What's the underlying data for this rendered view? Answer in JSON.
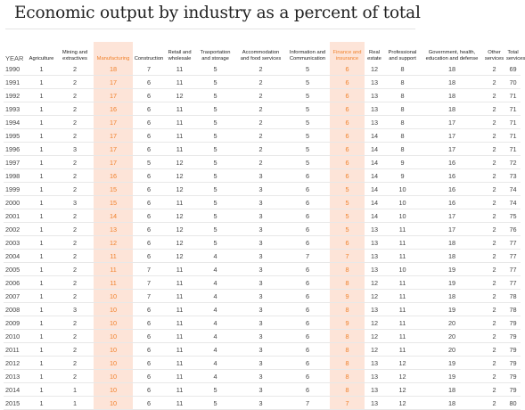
{
  "chart_data": {
    "type": "table",
    "title": "Economic output by industry as a percent of total",
    "columns": [
      "YEAR",
      "Agriculture",
      "Mining and\nextractives",
      "Manufacturing",
      "Construction",
      "Retail and\nwholesale",
      "Trasportation\nand storage",
      "Accommodation\nand food services",
      "Information and\nCommunication",
      "Finance and\ninsurance",
      "Real\nestate",
      "Professional\nand support",
      "Government, health,\neducation and defense",
      "Other\nservices",
      "Total\nservices"
    ],
    "highlighted_columns": [
      "Manufacturing",
      "Finance and\ninsurance"
    ],
    "highlight_color": "#fde4d8",
    "highlight_text_color": "#f0822c",
    "rows": [
      [
        "1990",
        "1",
        "2",
        "18",
        "7",
        "11",
        "5",
        "2",
        "5",
        "6",
        "12",
        "8",
        "18",
        "2",
        "69"
      ],
      [
        "1991",
        "1",
        "2",
        "17",
        "6",
        "11",
        "5",
        "2",
        "5",
        "6",
        "13",
        "8",
        "18",
        "2",
        "70"
      ],
      [
        "1992",
        "1",
        "2",
        "17",
        "6",
        "12",
        "5",
        "2",
        "5",
        "6",
        "13",
        "8",
        "18",
        "2",
        "71"
      ],
      [
        "1993",
        "1",
        "2",
        "16",
        "6",
        "11",
        "5",
        "2",
        "5",
        "6",
        "13",
        "8",
        "18",
        "2",
        "71"
      ],
      [
        "1994",
        "1",
        "2",
        "17",
        "6",
        "11",
        "5",
        "2",
        "5",
        "6",
        "13",
        "8",
        "17",
        "2",
        "71"
      ],
      [
        "1995",
        "1",
        "2",
        "17",
        "6",
        "11",
        "5",
        "2",
        "5",
        "6",
        "14",
        "8",
        "17",
        "2",
        "71"
      ],
      [
        "1996",
        "1",
        "3",
        "17",
        "6",
        "11",
        "5",
        "2",
        "5",
        "6",
        "14",
        "8",
        "17",
        "2",
        "71"
      ],
      [
        "1997",
        "1",
        "2",
        "17",
        "5",
        "12",
        "5",
        "2",
        "5",
        "6",
        "14",
        "9",
        "16",
        "2",
        "72"
      ],
      [
        "1998",
        "1",
        "2",
        "16",
        "6",
        "12",
        "5",
        "3",
        "6",
        "6",
        "14",
        "9",
        "16",
        "2",
        "73"
      ],
      [
        "1999",
        "1",
        "2",
        "15",
        "6",
        "12",
        "5",
        "3",
        "6",
        "5",
        "14",
        "10",
        "16",
        "2",
        "74"
      ],
      [
        "2000",
        "1",
        "3",
        "15",
        "6",
        "11",
        "5",
        "3",
        "6",
        "5",
        "14",
        "10",
        "16",
        "2",
        "74"
      ],
      [
        "2001",
        "1",
        "2",
        "14",
        "6",
        "12",
        "5",
        "3",
        "6",
        "5",
        "14",
        "10",
        "17",
        "2",
        "75"
      ],
      [
        "2002",
        "1",
        "2",
        "13",
        "6",
        "12",
        "5",
        "3",
        "6",
        "5",
        "13",
        "11",
        "17",
        "2",
        "76"
      ],
      [
        "2003",
        "1",
        "2",
        "12",
        "6",
        "12",
        "5",
        "3",
        "6",
        "6",
        "13",
        "11",
        "18",
        "2",
        "77"
      ],
      [
        "2004",
        "1",
        "2",
        "11",
        "6",
        "12",
        "4",
        "3",
        "7",
        "7",
        "13",
        "11",
        "18",
        "2",
        "77"
      ],
      [
        "2005",
        "1",
        "2",
        "11",
        "7",
        "11",
        "4",
        "3",
        "6",
        "8",
        "13",
        "10",
        "19",
        "2",
        "77"
      ],
      [
        "2006",
        "1",
        "2",
        "11",
        "7",
        "11",
        "4",
        "3",
        "6",
        "8",
        "12",
        "11",
        "19",
        "2",
        "77"
      ],
      [
        "2007",
        "1",
        "2",
        "10",
        "7",
        "11",
        "4",
        "3",
        "6",
        "9",
        "12",
        "11",
        "18",
        "2",
        "78"
      ],
      [
        "2008",
        "1",
        "3",
        "10",
        "6",
        "11",
        "4",
        "3",
        "6",
        "8",
        "13",
        "11",
        "19",
        "2",
        "78"
      ],
      [
        "2009",
        "1",
        "2",
        "10",
        "6",
        "11",
        "4",
        "3",
        "6",
        "9",
        "12",
        "11",
        "20",
        "2",
        "79"
      ],
      [
        "2010",
        "1",
        "2",
        "10",
        "6",
        "11",
        "4",
        "3",
        "6",
        "8",
        "12",
        "11",
        "20",
        "2",
        "79"
      ],
      [
        "2011",
        "1",
        "2",
        "10",
        "6",
        "11",
        "4",
        "3",
        "6",
        "8",
        "12",
        "11",
        "20",
        "2",
        "79"
      ],
      [
        "2012",
        "1",
        "2",
        "10",
        "6",
        "11",
        "4",
        "3",
        "6",
        "8",
        "13",
        "12",
        "19",
        "2",
        "79"
      ],
      [
        "2013",
        "1",
        "2",
        "10",
        "6",
        "11",
        "4",
        "3",
        "6",
        "8",
        "13",
        "12",
        "19",
        "2",
        "79"
      ],
      [
        "2014",
        "1",
        "1",
        "10",
        "6",
        "11",
        "5",
        "3",
        "6",
        "8",
        "13",
        "12",
        "18",
        "2",
        "79"
      ],
      [
        "2015",
        "1",
        "1",
        "10",
        "6",
        "11",
        "5",
        "3",
        "7",
        "7",
        "13",
        "12",
        "18",
        "2",
        "80"
      ]
    ]
  }
}
